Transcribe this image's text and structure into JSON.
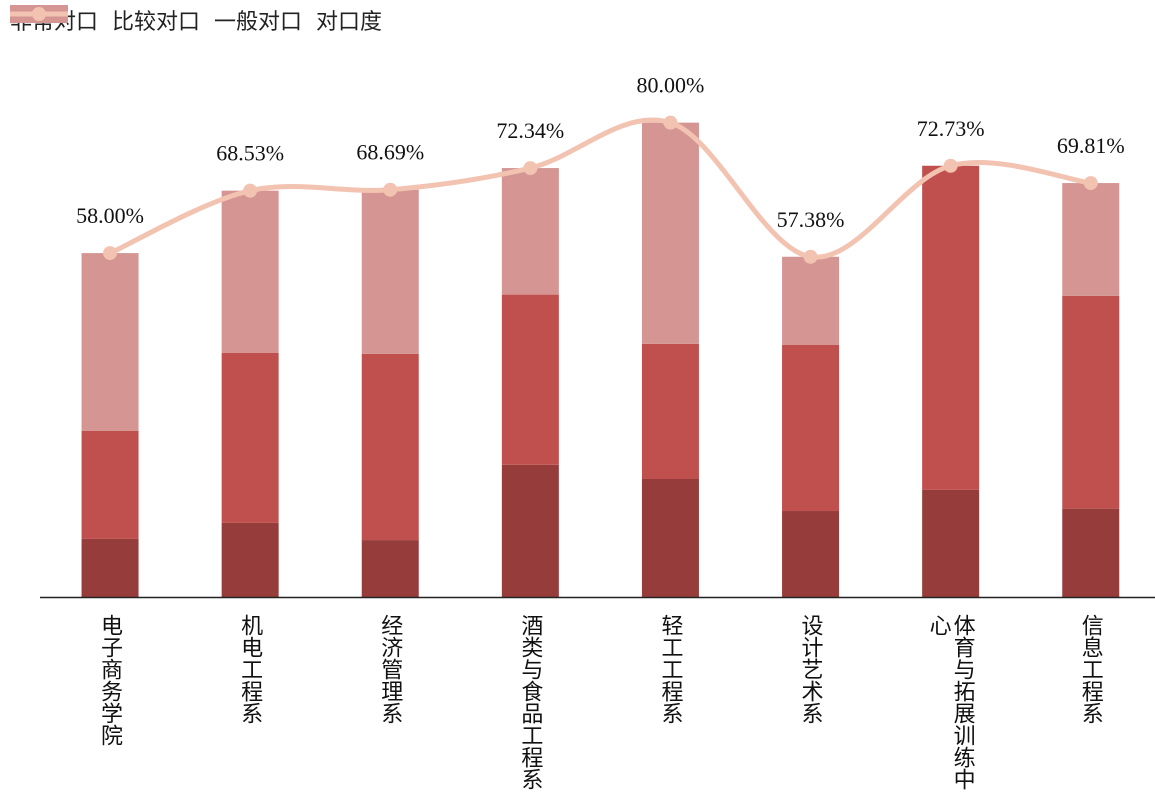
{
  "chart_data": {
    "type": "bar",
    "stacked": true,
    "categories": [
      "电子商务学院",
      "机电工程系",
      "经济管理系",
      "酒类与食品工程系",
      "轻工工程系",
      "设计艺术系",
      "体育与拓展训练中心",
      "信息工程系"
    ],
    "series": [
      {
        "name": "非常对口",
        "color": "#963c3b",
        "values": [
          9.8,
          12.5,
          9.6,
          22.3,
          19.9,
          14.5,
          18.1,
          14.9
        ]
      },
      {
        "name": "比较对口",
        "color": "#c0504e",
        "values": [
          18.2,
          28.7,
          31.4,
          28.7,
          22.8,
          28.0,
          54.63,
          35.9
        ]
      },
      {
        "name": "一般对口",
        "color": "#d49593",
        "values": [
          30.0,
          27.33,
          27.69,
          21.34,
          37.3,
          14.88,
          0,
          19.01
        ]
      },
      {
        "name": "对口度",
        "type": "line",
        "color": "#f3c3b2",
        "values": [
          58.0,
          68.53,
          68.69,
          72.34,
          80.0,
          57.38,
          72.73,
          69.81
        ],
        "value_labels": [
          "58.00%",
          "68.53%",
          "68.69%",
          "72.34%",
          "80.00%",
          "57.38%",
          "72.73%",
          "69.81%"
        ]
      }
    ],
    "ylim": [
      0,
      85
    ],
    "legend": "top-left"
  }
}
